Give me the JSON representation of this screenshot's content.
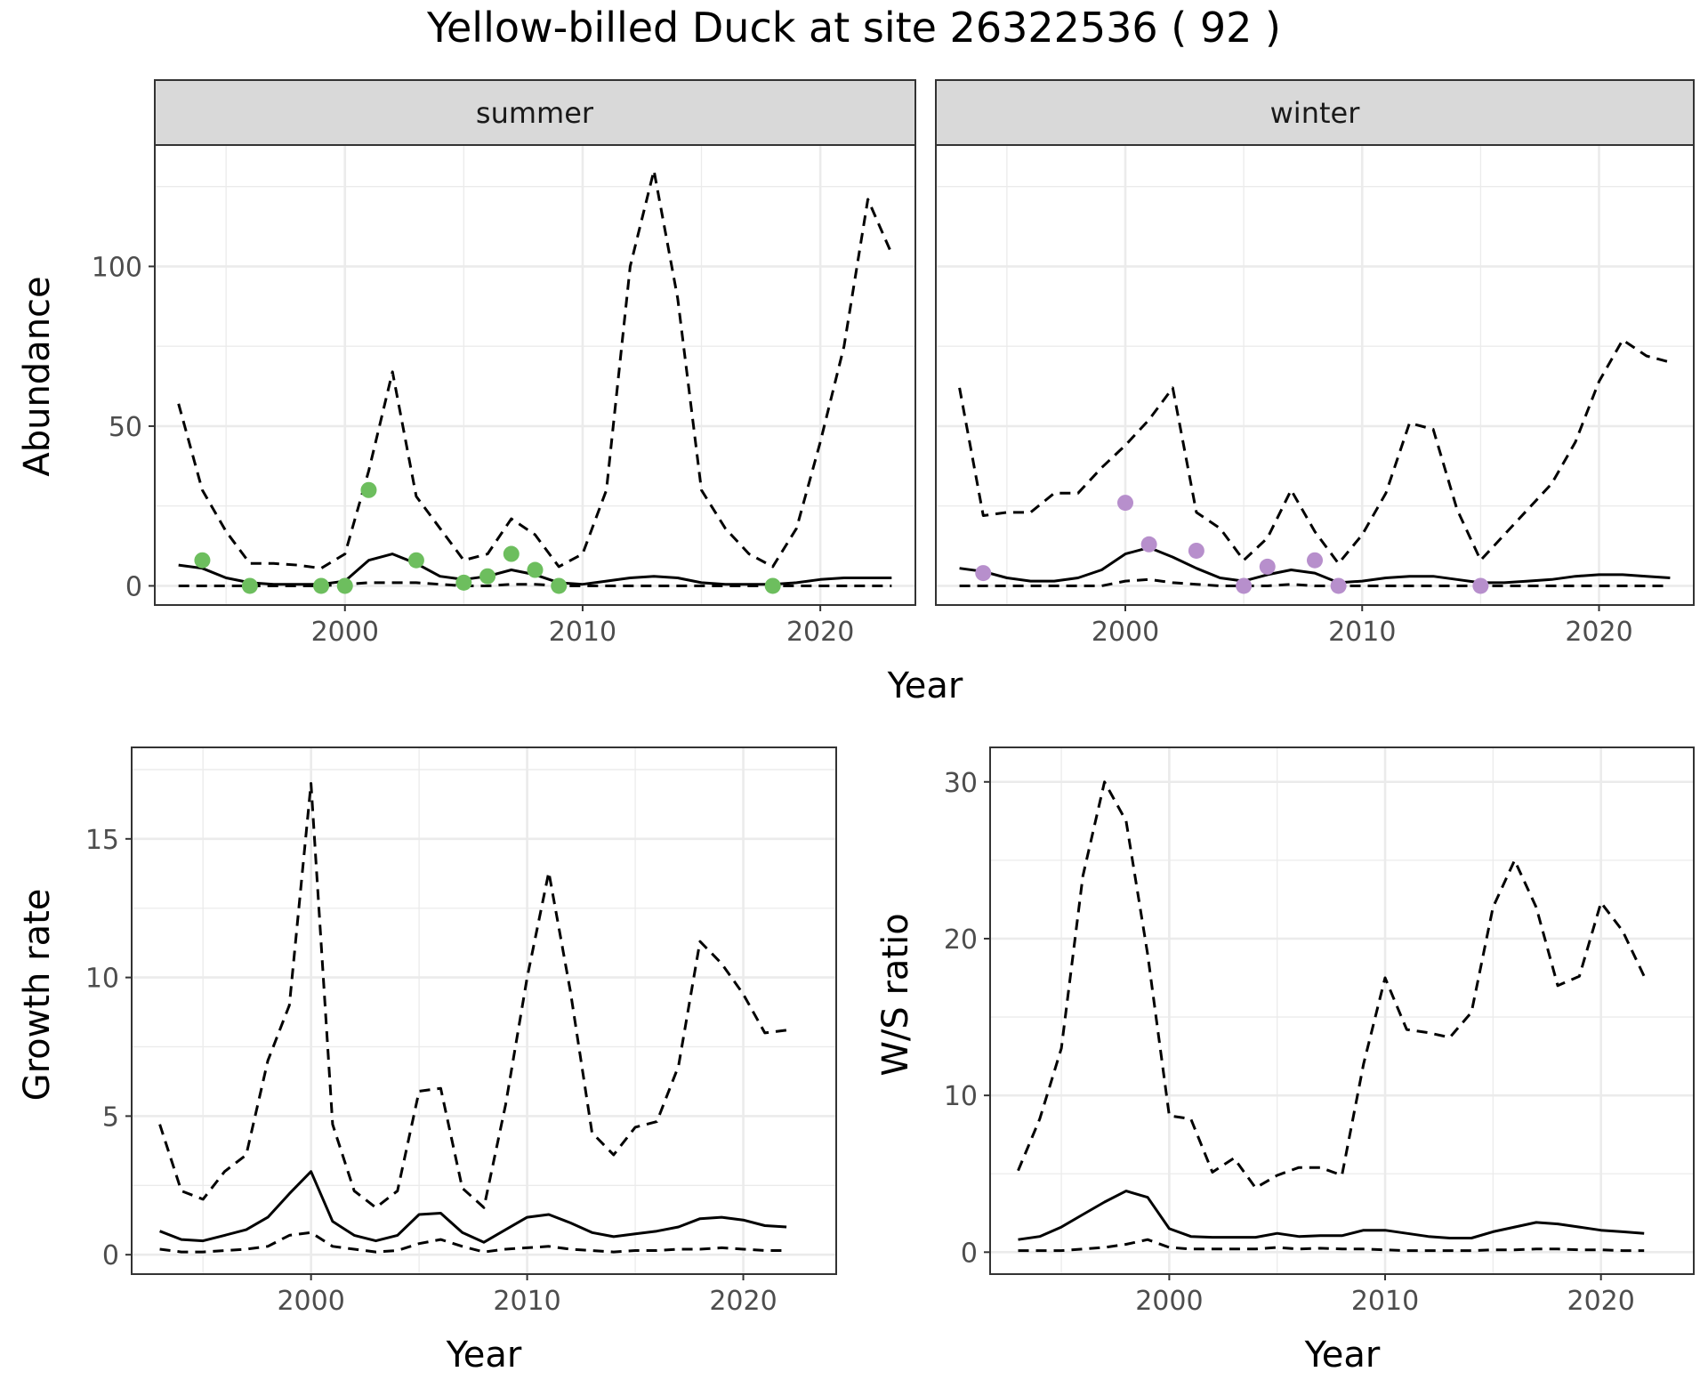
{
  "title": "Yellow-billed Duck at site 26322536 ( 92 )",
  "colors": {
    "summer_points": "#6DBE5E",
    "winter_points": "#B78FCC",
    "lines": "#000000",
    "strip": "#D9D9D9",
    "grid": "#EBEBEB"
  },
  "chart_data": [
    {
      "type": "line",
      "panel": "summer",
      "strip_label": "summer",
      "xlabel": "Year",
      "ylabel": "Abundance",
      "xlim": [
        1992,
        2024
      ],
      "ylim": [
        -6,
        138
      ],
      "x_ticks": [
        2000,
        2010,
        2020
      ],
      "y_ticks": [
        0,
        50,
        100
      ],
      "grid": true,
      "x": [
        1993,
        1994,
        1995,
        1996,
        1997,
        1998,
        1999,
        2000,
        2001,
        2002,
        2003,
        2004,
        2005,
        2006,
        2007,
        2008,
        2009,
        2010,
        2011,
        2012,
        2013,
        2014,
        2015,
        2016,
        2017,
        2018,
        2019,
        2020,
        2021,
        2022,
        2023
      ],
      "series": [
        {
          "style": "solid",
          "values": [
            6.5,
            5.5,
            2.5,
            1,
            0.5,
            0.5,
            0.5,
            1.5,
            8,
            10,
            7,
            3,
            2,
            3,
            5,
            3.5,
            1,
            0.5,
            1.5,
            2.5,
            3,
            2.5,
            1,
            0.5,
            0.5,
            0.5,
            1,
            2,
            2.5,
            2.5,
            2.5
          ]
        },
        {
          "style": "dashed",
          "values": [
            57,
            30,
            17,
            7,
            7,
            6.5,
            5.5,
            10,
            36,
            67,
            28,
            18,
            8,
            10,
            21,
            16,
            6,
            10,
            30,
            100,
            130,
            90,
            30,
            18,
            10,
            6,
            18,
            45,
            75,
            121,
            104
          ]
        },
        {
          "style": "dashed",
          "values": [
            0,
            0,
            0,
            0,
            0,
            0,
            0,
            0.5,
            1,
            1,
            1,
            0.5,
            0,
            0,
            0.5,
            0.5,
            0,
            0,
            0,
            0,
            0,
            0,
            0,
            0,
            0,
            0,
            0,
            0,
            0,
            0,
            0
          ]
        }
      ],
      "points": {
        "x": [
          1994,
          1996,
          1999,
          2000,
          2001,
          2003,
          2005,
          2006,
          2007,
          2008,
          2009,
          2018
        ],
        "y": [
          8,
          0,
          0,
          0,
          30,
          8,
          1,
          3,
          10,
          5,
          0,
          0
        ]
      }
    },
    {
      "type": "line",
      "panel": "winter",
      "strip_label": "winter",
      "xlabel": "Year",
      "ylabel": "Abundance",
      "xlim": [
        1992,
        2024
      ],
      "ylim": [
        -6,
        138
      ],
      "x_ticks": [
        2000,
        2010,
        2020
      ],
      "y_ticks": [
        0,
        50,
        100
      ],
      "grid": true,
      "x": [
        1993,
        1994,
        1995,
        1996,
        1997,
        1998,
        1999,
        2000,
        2001,
        2002,
        2003,
        2004,
        2005,
        2006,
        2007,
        2008,
        2009,
        2010,
        2011,
        2012,
        2013,
        2014,
        2015,
        2016,
        2017,
        2018,
        2019,
        2020,
        2021,
        2022,
        2023
      ],
      "series": [
        {
          "style": "solid",
          "values": [
            5.5,
            4.5,
            2.5,
            1.5,
            1.5,
            2.5,
            5,
            10,
            12,
            9,
            5.5,
            2.5,
            1.5,
            3.5,
            5,
            4,
            1,
            1.5,
            2.5,
            3,
            3,
            2,
            1,
            1,
            1.5,
            2,
            3,
            3.5,
            3.5,
            3,
            2.5
          ]
        },
        {
          "style": "dashed",
          "values": [
            62,
            22,
            23,
            23,
            29,
            29,
            37,
            44,
            52,
            62,
            23,
            18,
            8,
            15,
            30,
            17,
            7,
            16,
            29,
            51,
            49,
            24,
            8,
            16,
            24,
            32,
            45,
            64,
            77,
            72,
            70
          ]
        },
        {
          "style": "dashed",
          "values": [
            0,
            0,
            0,
            0,
            0,
            0,
            0,
            1.5,
            2,
            1,
            0.5,
            0,
            0,
            0,
            0.5,
            0,
            0,
            0,
            0,
            0,
            0,
            0,
            0,
            0,
            0,
            0,
            0,
            0,
            0,
            0,
            0
          ]
        }
      ],
      "points": {
        "x": [
          1994,
          2000,
          2001,
          2003,
          2005,
          2006,
          2008,
          2009,
          2015
        ],
        "y": [
          4,
          26,
          13,
          11,
          0,
          6,
          8,
          0,
          0
        ]
      }
    },
    {
      "type": "line",
      "panel": "growth",
      "xlabel": "Year",
      "ylabel": "Growth rate",
      "xlim": [
        1991.7,
        2024.3
      ],
      "ylim": [
        -0.7,
        18.3
      ],
      "x_ticks": [
        2000,
        2010,
        2020
      ],
      "y_ticks": [
        0,
        5,
        10,
        15
      ],
      "grid": true,
      "x": [
        1993,
        1994,
        1995,
        1996,
        1997,
        1998,
        1999,
        2000,
        2001,
        2002,
        2003,
        2004,
        2005,
        2006,
        2007,
        2008,
        2009,
        2010,
        2011,
        2012,
        2013,
        2014,
        2015,
        2016,
        2017,
        2018,
        2019,
        2020,
        2021,
        2022
      ],
      "series": [
        {
          "style": "solid",
          "values": [
            0.85,
            0.55,
            0.5,
            0.7,
            0.9,
            1.35,
            2.2,
            3,
            1.2,
            0.7,
            0.5,
            0.7,
            1.45,
            1.5,
            0.8,
            0.45,
            0.9,
            1.35,
            1.45,
            1.15,
            0.8,
            0.65,
            0.75,
            0.85,
            1,
            1.3,
            1.35,
            1.25,
            1.05,
            1
          ]
        },
        {
          "style": "dashed",
          "values": [
            4.7,
            2.3,
            2,
            3,
            3.6,
            7,
            9,
            17,
            4.7,
            2.3,
            1.7,
            2.3,
            5.9,
            6,
            2.4,
            1.7,
            5.4,
            10,
            13.8,
            9.5,
            4.4,
            3.6,
            4.6,
            4.8,
            6.8,
            11.3,
            10.5,
            9.4,
            8,
            8.1
          ]
        },
        {
          "style": "dashed",
          "values": [
            0.2,
            0.1,
            0.1,
            0.15,
            0.2,
            0.3,
            0.7,
            0.8,
            0.3,
            0.2,
            0.1,
            0.15,
            0.4,
            0.55,
            0.3,
            0.1,
            0.2,
            0.25,
            0.3,
            0.2,
            0.15,
            0.1,
            0.15,
            0.15,
            0.2,
            0.2,
            0.25,
            0.2,
            0.15,
            0.15
          ]
        }
      ]
    },
    {
      "type": "line",
      "panel": "ratio",
      "xlabel": "Year",
      "ylabel": "W/S ratio",
      "xlim": [
        1991.7,
        2024.3
      ],
      "ylim": [
        -1.4,
        32.2
      ],
      "x_ticks": [
        2000,
        2010,
        2020
      ],
      "y_ticks": [
        0,
        10,
        20,
        30
      ],
      "grid": true,
      "x": [
        1993,
        1994,
        1995,
        1996,
        1997,
        1998,
        1999,
        2000,
        2001,
        2002,
        2003,
        2004,
        2005,
        2006,
        2007,
        2008,
        2009,
        2010,
        2011,
        2012,
        2013,
        2014,
        2015,
        2016,
        2017,
        2018,
        2019,
        2020,
        2021,
        2022
      ],
      "series": [
        {
          "style": "solid",
          "values": [
            0.8,
            1.0,
            1.6,
            2.4,
            3.2,
            3.9,
            3.5,
            1.5,
            1.0,
            0.95,
            0.95,
            0.95,
            1.2,
            1.0,
            1.05,
            1.05,
            1.4,
            1.4,
            1.2,
            1.0,
            0.9,
            0.9,
            1.3,
            1.6,
            1.9,
            1.8,
            1.6,
            1.4,
            1.3,
            1.2
          ]
        },
        {
          "style": "dashed",
          "values": [
            5.2,
            8.5,
            13,
            24,
            30,
            27.5,
            19,
            8.7,
            8.5,
            5.1,
            6,
            4.1,
            4.9,
            5.4,
            5.4,
            4.9,
            12,
            17.5,
            14.2,
            14,
            13.7,
            15.3,
            22,
            25,
            22,
            17,
            17.6,
            22.3,
            20.5,
            17.6
          ]
        },
        {
          "style": "dashed",
          "values": [
            0.1,
            0.1,
            0.1,
            0.2,
            0.3,
            0.5,
            0.8,
            0.3,
            0.2,
            0.2,
            0.2,
            0.2,
            0.3,
            0.2,
            0.25,
            0.2,
            0.2,
            0.15,
            0.1,
            0.1,
            0.1,
            0.1,
            0.15,
            0.15,
            0.2,
            0.2,
            0.15,
            0.15,
            0.1,
            0.1
          ]
        }
      ]
    }
  ]
}
